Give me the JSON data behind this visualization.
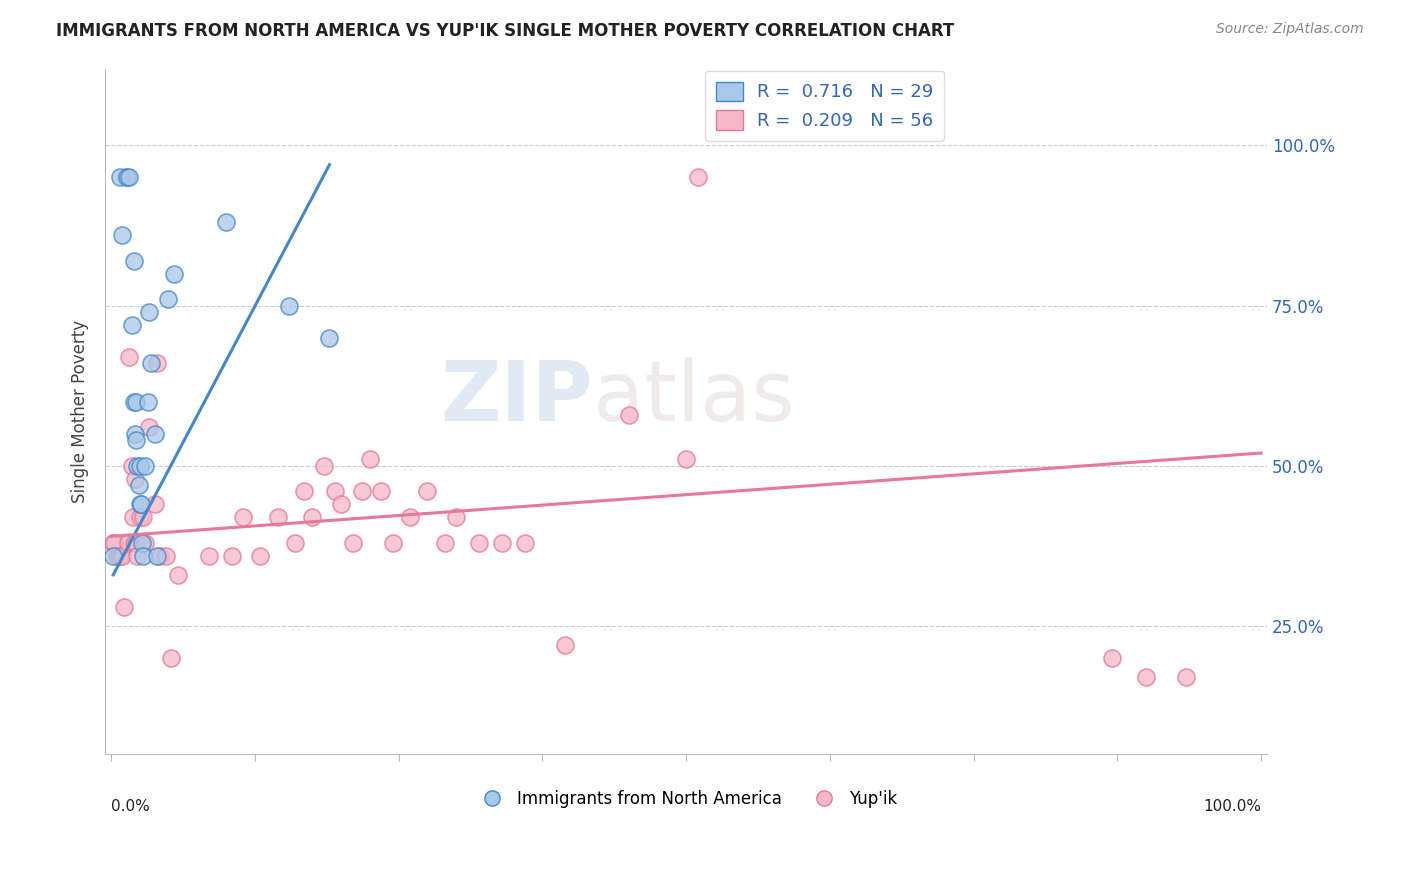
{
  "title": "IMMIGRANTS FROM NORTH AMERICA VS YUP'IK SINGLE MOTHER POVERTY CORRELATION CHART",
  "source": "Source: ZipAtlas.com",
  "ylabel": "Single Mother Poverty",
  "ytick_labels": [
    "25.0%",
    "50.0%",
    "75.0%",
    "100.0%"
  ],
  "ytick_values": [
    0.25,
    0.5,
    0.75,
    1.0
  ],
  "legend_label1": "Immigrants from North America",
  "legend_label2": "Yup'ik",
  "legend_R1": "R =  0.716",
  "legend_N1": "N = 29",
  "legend_R2": "R =  0.209",
  "legend_N2": "N = 56",
  "color_blue": "#A8C8E8",
  "color_pink": "#F4B8C8",
  "color_blue_dark": "#4488CC",
  "color_pink_dark": "#E87898",
  "color_blue_text": "#3366BB",
  "watermark_zip": "ZIP",
  "watermark_atlas": "atlas",
  "blue_scatter_x": [
    0.002,
    0.008,
    0.01,
    0.014,
    0.016,
    0.018,
    0.02,
    0.02,
    0.021,
    0.022,
    0.022,
    0.023,
    0.024,
    0.025,
    0.025,
    0.026,
    0.027,
    0.028,
    0.03,
    0.032,
    0.033,
    0.035,
    0.038,
    0.04,
    0.05,
    0.055,
    0.1,
    0.155,
    0.19
  ],
  "blue_scatter_y": [
    0.36,
    0.95,
    0.86,
    0.95,
    0.95,
    0.72,
    0.6,
    0.82,
    0.55,
    0.54,
    0.6,
    0.5,
    0.47,
    0.44,
    0.5,
    0.44,
    0.38,
    0.36,
    0.5,
    0.6,
    0.74,
    0.66,
    0.55,
    0.36,
    0.76,
    0.8,
    0.88,
    0.75,
    0.7
  ],
  "blue_line_x": [
    0.002,
    0.19
  ],
  "blue_line_y": [
    0.33,
    0.97
  ],
  "pink_scatter_x": [
    0.002,
    0.003,
    0.005,
    0.007,
    0.009,
    0.01,
    0.011,
    0.013,
    0.015,
    0.016,
    0.018,
    0.019,
    0.02,
    0.021,
    0.022,
    0.023,
    0.025,
    0.028,
    0.03,
    0.033,
    0.038,
    0.04,
    0.043,
    0.048,
    0.052,
    0.058,
    0.085,
    0.105,
    0.115,
    0.13,
    0.145,
    0.16,
    0.168,
    0.175,
    0.185,
    0.195,
    0.2,
    0.21,
    0.218,
    0.225,
    0.235,
    0.245,
    0.26,
    0.275,
    0.29,
    0.3,
    0.32,
    0.34,
    0.36,
    0.395,
    0.45,
    0.5,
    0.51,
    0.87,
    0.9,
    0.935
  ],
  "pink_scatter_y": [
    0.38,
    0.38,
    0.36,
    0.36,
    0.36,
    0.36,
    0.28,
    0.95,
    0.38,
    0.67,
    0.5,
    0.42,
    0.38,
    0.48,
    0.38,
    0.36,
    0.42,
    0.42,
    0.38,
    0.56,
    0.44,
    0.66,
    0.36,
    0.36,
    0.2,
    0.33,
    0.36,
    0.36,
    0.42,
    0.36,
    0.42,
    0.38,
    0.46,
    0.42,
    0.5,
    0.46,
    0.44,
    0.38,
    0.46,
    0.51,
    0.46,
    0.38,
    0.42,
    0.46,
    0.38,
    0.42,
    0.38,
    0.38,
    0.38,
    0.22,
    0.58,
    0.51,
    0.95,
    0.2,
    0.17,
    0.17
  ],
  "pink_line_x": [
    0.0,
    1.0
  ],
  "pink_line_y": [
    0.39,
    0.52
  ],
  "xlim": [
    -0.005,
    1.005
  ],
  "ylim": [
    0.05,
    1.12
  ]
}
